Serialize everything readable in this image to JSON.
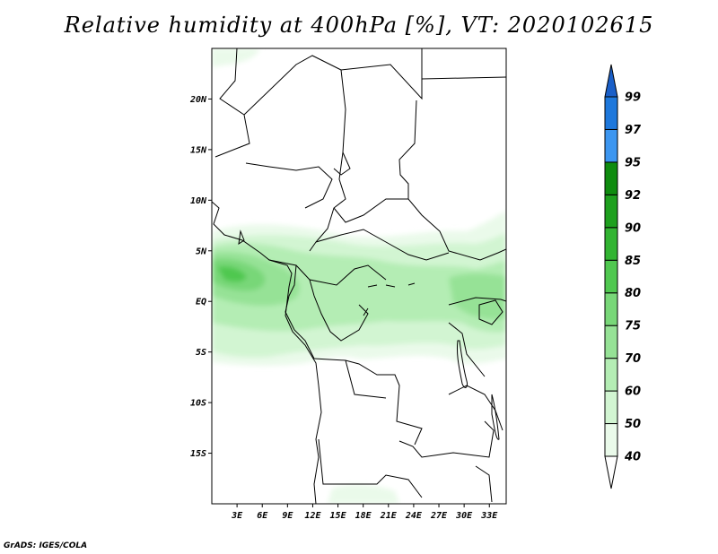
{
  "title": "Relative humidity at 400hPa [%], VT: 2020102615",
  "footer": "GrADS: IGES/COLA",
  "map": {
    "extent": {
      "lon": [
        0,
        35
      ],
      "lat": [
        -20,
        25
      ]
    },
    "lat_ticks": [
      {
        "value": 20,
        "label": "20N"
      },
      {
        "value": 15,
        "label": "15N"
      },
      {
        "value": 10,
        "label": "10N"
      },
      {
        "value": 5,
        "label": "5N"
      },
      {
        "value": 0,
        "label": "EQ"
      },
      {
        "value": -5,
        "label": "5S"
      },
      {
        "value": -10,
        "label": "10S"
      },
      {
        "value": -15,
        "label": "15S"
      }
    ],
    "lon_ticks": [
      {
        "value": 3,
        "label": "3E"
      },
      {
        "value": 6,
        "label": "6E"
      },
      {
        "value": 9,
        "label": "9E"
      },
      {
        "value": 12,
        "label": "12E"
      },
      {
        "value": 15,
        "label": "15E"
      },
      {
        "value": 18,
        "label": "18E"
      },
      {
        "value": 21,
        "label": "21E"
      },
      {
        "value": 24,
        "label": "24E"
      },
      {
        "value": 27,
        "label": "27E"
      },
      {
        "value": 30,
        "label": "30E"
      },
      {
        "value": 33,
        "label": "33E"
      }
    ]
  },
  "colorbar": {
    "bins": [
      {
        "from": 40,
        "to": 50,
        "color": "#eafaea"
      },
      {
        "from": 50,
        "to": 60,
        "color": "#d2f5d2"
      },
      {
        "from": 60,
        "to": 70,
        "color": "#b4edb4"
      },
      {
        "from": 70,
        "to": 75,
        "color": "#96e296"
      },
      {
        "from": 75,
        "to": 80,
        "color": "#78d778"
      },
      {
        "from": 80,
        "to": 85,
        "color": "#50c850"
      },
      {
        "from": 85,
        "to": 90,
        "color": "#32b432"
      },
      {
        "from": 90,
        "to": 92,
        "color": "#1ea01e"
      },
      {
        "from": 92,
        "to": 95,
        "color": "#0f8c0f"
      },
      {
        "from": 95,
        "to": 97,
        "color": "#3c96f0"
      },
      {
        "from": 97,
        "to": 99,
        "color": "#1e78dc"
      }
    ],
    "over_color": "#1a5fc8",
    "under_color": "#ffffff",
    "labels": [
      "40",
      "50",
      "60",
      "70",
      "75",
      "80",
      "85",
      "90",
      "92",
      "95",
      "97",
      "99"
    ]
  }
}
